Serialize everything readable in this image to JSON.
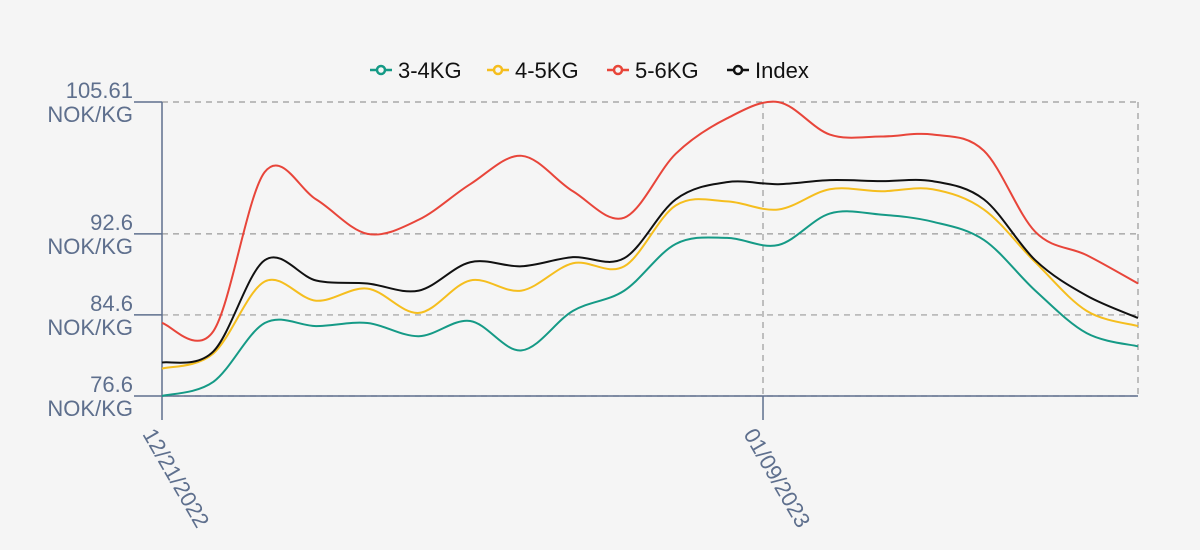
{
  "chart_data": {
    "type": "line",
    "title": "",
    "xlabel": "",
    "ylabel": "",
    "ylim": [
      76.6,
      105.61
    ],
    "grid": true,
    "legend_position": "top-center",
    "y_ticks": [
      {
        "value": 105.61,
        "label_line1": "105.61",
        "label_line2": "NOK/KG"
      },
      {
        "value": 92.6,
        "label_line1": "92.6",
        "label_line2": "NOK/KG"
      },
      {
        "value": 84.6,
        "label_line1": "84.6",
        "label_line2": "NOK/KG"
      },
      {
        "value": 76.6,
        "label_line1": "76.6",
        "label_line2": "NOK/KG"
      }
    ],
    "x_ticks": [
      {
        "label": "12/21/2022"
      },
      {
        "label": "01/09/2023"
      }
    ],
    "series": [
      {
        "name": "3-4KG",
        "color": "#159a86",
        "values": [
          76.6,
          78.0,
          83.8,
          83.5,
          83.8,
          82.5,
          84.0,
          81.1,
          85.0,
          87.0,
          91.6,
          92.2,
          91.5,
          94.6,
          94.5,
          93.8,
          92.0,
          87.0,
          82.8,
          81.5
        ]
      },
      {
        "name": "4-5KG",
        "color": "#f5be1e",
        "values": [
          79.3,
          80.8,
          87.9,
          86.0,
          87.2,
          84.8,
          88.0,
          87.0,
          89.7,
          89.4,
          95.4,
          95.8,
          95.0,
          97.0,
          96.8,
          97.0,
          95.0,
          89.8,
          85.0,
          83.5
        ]
      },
      {
        "name": "5-6KG",
        "color": "#e8453a",
        "values": [
          83.8,
          83.0,
          98.7,
          96.0,
          92.6,
          94.0,
          97.5,
          100.3,
          96.8,
          94.2,
          100.5,
          104.0,
          105.6,
          102.4,
          102.2,
          102.4,
          100.8,
          92.8,
          90.5,
          87.7
        ]
      },
      {
        "name": "Index",
        "color": "#111111",
        "values": [
          79.9,
          81.0,
          90.0,
          88.0,
          87.7,
          87.0,
          89.8,
          89.4,
          90.3,
          90.2,
          96.0,
          97.7,
          97.5,
          97.9,
          97.8,
          97.8,
          96.0,
          90.0,
          86.5,
          84.3
        ]
      }
    ]
  }
}
